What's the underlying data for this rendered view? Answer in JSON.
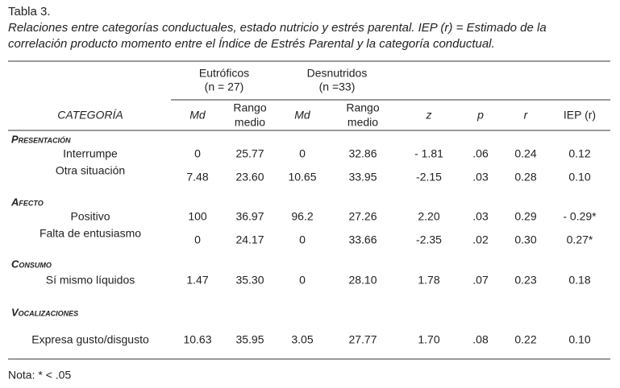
{
  "title": "Tabla 3.",
  "caption": [
    "Relaciones entre categorías conductuales, estado nutricio y estrés parental. IEP (r) = Estimado de la",
    "correlación producto momento entre el Índice de Estrés Parental y la categoría conductual."
  ],
  "table": {
    "groups": [
      {
        "name": "Eutróficos",
        "n": "(n = 27)"
      },
      {
        "name": "Desnutridos",
        "n": "(n =33)"
      }
    ],
    "columns": [
      [
        "CATEGORÍA"
      ],
      [
        "Md"
      ],
      [
        "Rango",
        "medio"
      ],
      [
        "Md"
      ],
      [
        "Rango",
        "medio"
      ],
      [
        "z"
      ],
      [
        "p"
      ],
      [
        "r"
      ],
      [
        "IEP (r)"
      ]
    ],
    "sections": [
      {
        "title": "Presentación",
        "rows": [
          {
            "label": "Interrumpe",
            "cells": [
              "0",
              "25.77",
              "0",
              "32.86",
              "- 1.81",
              ".06",
              "0.24",
              "0.12"
            ]
          },
          {
            "label": "Otra situación",
            "cells": [
              "7.48",
              "23.60",
              "10.65",
              "33.95",
              "-2.15",
              ".03",
              "0.28",
              "0.10"
            ]
          }
        ]
      },
      {
        "title": "Afecto",
        "rows": [
          {
            "label": "Positivo",
            "cells": [
              "100",
              "36.97",
              "96.2",
              "27.26",
              "2.20",
              ".03",
              "0.29",
              "- 0.29*"
            ]
          },
          {
            "label": "Falta de entusiasmo",
            "cells": [
              "0",
              "24.17",
              "0",
              "33.66",
              "-2.35",
              ".02",
              "0.30",
              "0.27*"
            ]
          }
        ]
      },
      {
        "title": "Consumo",
        "rows": [
          {
            "label": "Sí mismo líquidos",
            "cells": [
              "1.47",
              "35.30",
              "0",
              "28.10",
              "1.78",
              ".07",
              "0.23",
              "0.18"
            ]
          }
        ]
      },
      {
        "title": "Vocalizaciones",
        "rows": [
          {
            "label": "Expresa gusto/disgusto",
            "cells": [
              "10.63",
              "35.95",
              "3.05",
              "27.77",
              "1.70",
              ".08",
              "0.22",
              "0.10"
            ]
          }
        ]
      }
    ]
  },
  "note": "Nota: * < .05"
}
